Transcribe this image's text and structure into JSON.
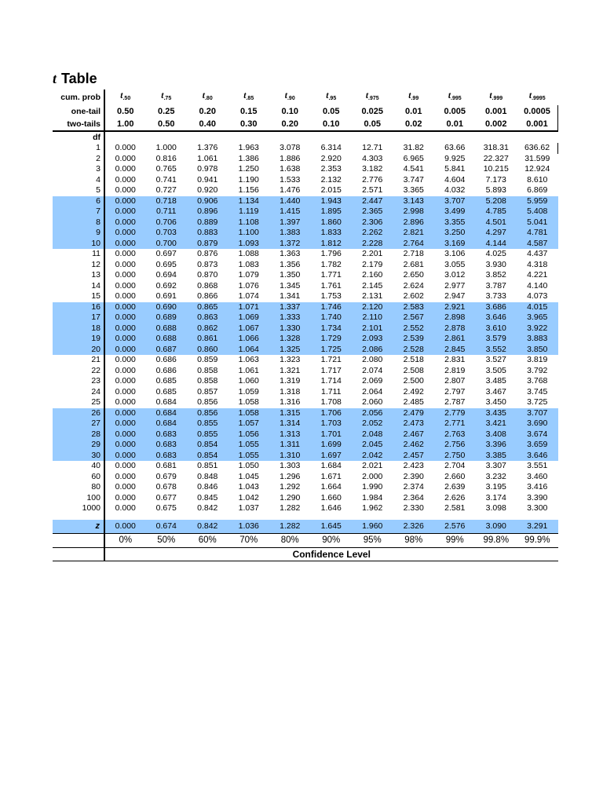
{
  "title": {
    "italic": "t",
    "rest": "Table"
  },
  "colors": {
    "highlight_blue": "#99ccff"
  },
  "header": {
    "cum_prob": "cum. prob",
    "one_tail": "one-tail",
    "two_tails": "two-tails",
    "df": "df",
    "t_base": "t",
    "t_subscripts": [
      ".50",
      ".75",
      ".80",
      ".85",
      ".90",
      ".95",
      ".975",
      ".99",
      ".995",
      ".999",
      ".9995"
    ],
    "one_tail_values": [
      "0.50",
      "0.25",
      "0.20",
      "0.15",
      "0.10",
      "0.05",
      "0.025",
      "0.01",
      "0.005",
      "0.001",
      "0.0005"
    ],
    "two_tails_values": [
      "1.00",
      "0.50",
      "0.40",
      "0.30",
      "0.20",
      "0.10",
      "0.05",
      "0.02",
      "0.01",
      "0.002",
      "0.001"
    ]
  },
  "body_rows": [
    {
      "df": "1",
      "highlight": false,
      "values": [
        "0.000",
        "1.000",
        "1.376",
        "1.963",
        "3.078",
        "6.314",
        "12.71",
        "31.82",
        "63.66",
        "318.31",
        "636.62"
      ]
    },
    {
      "df": "2",
      "highlight": false,
      "values": [
        "0.000",
        "0.816",
        "1.061",
        "1.386",
        "1.886",
        "2.920",
        "4.303",
        "6.965",
        "9.925",
        "22.327",
        "31.599"
      ]
    },
    {
      "df": "3",
      "highlight": false,
      "values": [
        "0.000",
        "0.765",
        "0.978",
        "1.250",
        "1.638",
        "2.353",
        "3.182",
        "4.541",
        "5.841",
        "10.215",
        "12.924"
      ]
    },
    {
      "df": "4",
      "highlight": false,
      "values": [
        "0.000",
        "0.741",
        "0.941",
        "1.190",
        "1.533",
        "2.132",
        "2.776",
        "3.747",
        "4.604",
        "7.173",
        "8.610"
      ]
    },
    {
      "df": "5",
      "highlight": false,
      "values": [
        "0.000",
        "0.727",
        "0.920",
        "1.156",
        "1.476",
        "2.015",
        "2.571",
        "3.365",
        "4.032",
        "5.893",
        "6.869"
      ]
    },
    {
      "df": "6",
      "highlight": true,
      "values": [
        "0.000",
        "0.718",
        "0.906",
        "1.134",
        "1.440",
        "1.943",
        "2.447",
        "3.143",
        "3.707",
        "5.208",
        "5.959"
      ]
    },
    {
      "df": "7",
      "highlight": true,
      "values": [
        "0.000",
        "0.711",
        "0.896",
        "1.119",
        "1.415",
        "1.895",
        "2.365",
        "2.998",
        "3.499",
        "4.785",
        "5.408"
      ]
    },
    {
      "df": "8",
      "highlight": true,
      "values": [
        "0.000",
        "0.706",
        "0.889",
        "1.108",
        "1.397",
        "1.860",
        "2.306",
        "2.896",
        "3.355",
        "4.501",
        "5.041"
      ]
    },
    {
      "df": "9",
      "highlight": true,
      "values": [
        "0.000",
        "0.703",
        "0.883",
        "1.100",
        "1.383",
        "1.833",
        "2.262",
        "2.821",
        "3.250",
        "4.297",
        "4.781"
      ]
    },
    {
      "df": "10",
      "highlight": true,
      "values": [
        "0.000",
        "0.700",
        "0.879",
        "1.093",
        "1.372",
        "1.812",
        "2.228",
        "2.764",
        "3.169",
        "4.144",
        "4.587"
      ]
    },
    {
      "df": "11",
      "highlight": false,
      "values": [
        "0.000",
        "0.697",
        "0.876",
        "1.088",
        "1.363",
        "1.796",
        "2.201",
        "2.718",
        "3.106",
        "4.025",
        "4.437"
      ]
    },
    {
      "df": "12",
      "highlight": false,
      "values": [
        "0.000",
        "0.695",
        "0.873",
        "1.083",
        "1.356",
        "1.782",
        "2.179",
        "2.681",
        "3.055",
        "3.930",
        "4.318"
      ]
    },
    {
      "df": "13",
      "highlight": false,
      "values": [
        "0.000",
        "0.694",
        "0.870",
        "1.079",
        "1.350",
        "1.771",
        "2.160",
        "2.650",
        "3.012",
        "3.852",
        "4.221"
      ]
    },
    {
      "df": "14",
      "highlight": false,
      "values": [
        "0.000",
        "0.692",
        "0.868",
        "1.076",
        "1.345",
        "1.761",
        "2.145",
        "2.624",
        "2.977",
        "3.787",
        "4.140"
      ]
    },
    {
      "df": "15",
      "highlight": false,
      "values": [
        "0.000",
        "0.691",
        "0.866",
        "1.074",
        "1.341",
        "1.753",
        "2.131",
        "2.602",
        "2.947",
        "3.733",
        "4.073"
      ]
    },
    {
      "df": "16",
      "highlight": true,
      "values": [
        "0.000",
        "0.690",
        "0.865",
        "1.071",
        "1.337",
        "1.746",
        "2.120",
        "2.583",
        "2.921",
        "3.686",
        "4.015"
      ]
    },
    {
      "df": "17",
      "highlight": true,
      "values": [
        "0.000",
        "0.689",
        "0.863",
        "1.069",
        "1.333",
        "1.740",
        "2.110",
        "2.567",
        "2.898",
        "3.646",
        "3.965"
      ]
    },
    {
      "df": "18",
      "highlight": true,
      "values": [
        "0.000",
        "0.688",
        "0.862",
        "1.067",
        "1.330",
        "1.734",
        "2.101",
        "2.552",
        "2.878",
        "3.610",
        "3.922"
      ]
    },
    {
      "df": "19",
      "highlight": true,
      "values": [
        "0.000",
        "0.688",
        "0.861",
        "1.066",
        "1.328",
        "1.729",
        "2.093",
        "2.539",
        "2.861",
        "3.579",
        "3.883"
      ]
    },
    {
      "df": "20",
      "highlight": true,
      "values": [
        "0.000",
        "0.687",
        "0.860",
        "1.064",
        "1.325",
        "1.725",
        "2.086",
        "2.528",
        "2.845",
        "3.552",
        "3.850"
      ]
    },
    {
      "df": "21",
      "highlight": false,
      "values": [
        "0.000",
        "0.686",
        "0.859",
        "1.063",
        "1.323",
        "1.721",
        "2.080",
        "2.518",
        "2.831",
        "3.527",
        "3.819"
      ]
    },
    {
      "df": "22",
      "highlight": false,
      "values": [
        "0.000",
        "0.686",
        "0.858",
        "1.061",
        "1.321",
        "1.717",
        "2.074",
        "2.508",
        "2.819",
        "3.505",
        "3.792"
      ]
    },
    {
      "df": "23",
      "highlight": false,
      "values": [
        "0.000",
        "0.685",
        "0.858",
        "1.060",
        "1.319",
        "1.714",
        "2.069",
        "2.500",
        "2.807",
        "3.485",
        "3.768"
      ]
    },
    {
      "df": "24",
      "highlight": false,
      "values": [
        "0.000",
        "0.685",
        "0.857",
        "1.059",
        "1.318",
        "1.711",
        "2.064",
        "2.492",
        "2.797",
        "3.467",
        "3.745"
      ]
    },
    {
      "df": "25",
      "highlight": false,
      "values": [
        "0.000",
        "0.684",
        "0.856",
        "1.058",
        "1.316",
        "1.708",
        "2.060",
        "2.485",
        "2.787",
        "3.450",
        "3.725"
      ]
    },
    {
      "df": "26",
      "highlight": true,
      "values": [
        "0.000",
        "0.684",
        "0.856",
        "1.058",
        "1.315",
        "1.706",
        "2.056",
        "2.479",
        "2.779",
        "3.435",
        "3.707"
      ]
    },
    {
      "df": "27",
      "highlight": true,
      "values": [
        "0.000",
        "0.684",
        "0.855",
        "1.057",
        "1.314",
        "1.703",
        "2.052",
        "2.473",
        "2.771",
        "3.421",
        "3.690"
      ]
    },
    {
      "df": "28",
      "highlight": true,
      "values": [
        "0.000",
        "0.683",
        "0.855",
        "1.056",
        "1.313",
        "1.701",
        "2.048",
        "2.467",
        "2.763",
        "3.408",
        "3.674"
      ]
    },
    {
      "df": "29",
      "highlight": true,
      "values": [
        "0.000",
        "0.683",
        "0.854",
        "1.055",
        "1.311",
        "1.699",
        "2.045",
        "2.462",
        "2.756",
        "3.396",
        "3.659"
      ]
    },
    {
      "df": "30",
      "highlight": true,
      "values": [
        "0.000",
        "0.683",
        "0.854",
        "1.055",
        "1.310",
        "1.697",
        "2.042",
        "2.457",
        "2.750",
        "3.385",
        "3.646"
      ]
    },
    {
      "df": "40",
      "highlight": false,
      "values": [
        "0.000",
        "0.681",
        "0.851",
        "1.050",
        "1.303",
        "1.684",
        "2.021",
        "2.423",
        "2.704",
        "3.307",
        "3.551"
      ]
    },
    {
      "df": "60",
      "highlight": false,
      "values": [
        "0.000",
        "0.679",
        "0.848",
        "1.045",
        "1.296",
        "1.671",
        "2.000",
        "2.390",
        "2.660",
        "3.232",
        "3.460"
      ]
    },
    {
      "df": "80",
      "highlight": false,
      "values": [
        "0.000",
        "0.678",
        "0.846",
        "1.043",
        "1.292",
        "1.664",
        "1.990",
        "2.374",
        "2.639",
        "3.195",
        "3.416"
      ]
    },
    {
      "df": "100",
      "highlight": false,
      "values": [
        "0.000",
        "0.677",
        "0.845",
        "1.042",
        "1.290",
        "1.660",
        "1.984",
        "2.364",
        "2.626",
        "3.174",
        "3.390"
      ]
    },
    {
      "df": "1000",
      "highlight": false,
      "values": [
        "0.000",
        "0.675",
        "0.842",
        "1.037",
        "1.282",
        "1.646",
        "1.962",
        "2.330",
        "2.581",
        "3.098",
        "3.300"
      ]
    }
  ],
  "z_row": {
    "label": "z",
    "highlight": true,
    "values": [
      "0.000",
      "0.674",
      "0.842",
      "1.036",
      "1.282",
      "1.645",
      "1.960",
      "2.326",
      "2.576",
      "3.090",
      "3.291"
    ]
  },
  "footer": {
    "confidence_values": [
      "0%",
      "50%",
      "60%",
      "70%",
      "80%",
      "90%",
      "95%",
      "98%",
      "99%",
      "99.8%",
      "99.9%"
    ],
    "confidence_label": "Confidence Level"
  }
}
